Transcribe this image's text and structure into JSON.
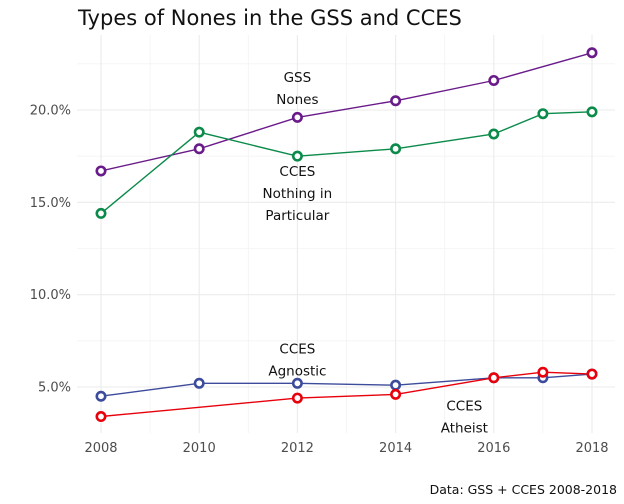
{
  "chart_data": {
    "type": "line",
    "title": "Types of Nones in the GSS and CCES",
    "caption": "Data: GSS + CCES 2008-2018",
    "xlabel": "",
    "ylabel": "",
    "xlim": [
      2007.5,
      2018.5
    ],
    "ylim": [
      2.5,
      24.5
    ],
    "x_ticks": [
      2008,
      2010,
      2012,
      2014,
      2016,
      2018
    ],
    "x_tick_labels": [
      "2008",
      "2010",
      "2012",
      "2014",
      "2016",
      "2018"
    ],
    "y_ticks": [
      5,
      10,
      15,
      20
    ],
    "y_tick_labels": [
      "5.0%",
      "10.0%",
      "15.0%",
      "20.0%"
    ],
    "grid": true,
    "legend": "none (direct labels)",
    "series": [
      {
        "name": "GSS Nones",
        "color": "#6a1b8a",
        "x": [
          2008,
          2010,
          2012,
          2014,
          2016,
          2018
        ],
        "values": [
          16.7,
          17.9,
          19.6,
          20.5,
          21.6,
          23.1
        ]
      },
      {
        "name": "CCES Nothing in Particular",
        "color": "#0b8a4a",
        "x": [
          2008,
          2010,
          2012,
          2014,
          2016,
          2017,
          2018
        ],
        "values": [
          14.4,
          18.8,
          17.5,
          17.9,
          18.7,
          19.8,
          19.9
        ]
      },
      {
        "name": "CCES Agnostic",
        "color": "#3c4b9b",
        "x": [
          2008,
          2010,
          2012,
          2014,
          2016,
          2017,
          2018
        ],
        "values": [
          4.5,
          5.2,
          5.2,
          5.1,
          5.5,
          5.5,
          5.7
        ]
      },
      {
        "name": "CCES Atheist",
        "color": "#e8000b",
        "x": [
          2008,
          2012,
          2014,
          2016,
          2017,
          2018
        ],
        "values": [
          3.4,
          4.4,
          4.6,
          5.5,
          5.8,
          5.7
        ]
      }
    ],
    "annotations": [
      {
        "lines": [
          "GSS",
          "Nones"
        ],
        "x": 2012,
        "y": 21.2
      },
      {
        "lines": [
          "CCES",
          "Nothing in",
          "Particular"
        ],
        "x": 2012,
        "y": 15.5
      },
      {
        "lines": [
          "CCES",
          "Agnostic"
        ],
        "x": 2012,
        "y": 6.5
      },
      {
        "lines": [
          "CCES",
          "Atheist"
        ],
        "x": 2015.4,
        "y": 3.4
      }
    ]
  }
}
